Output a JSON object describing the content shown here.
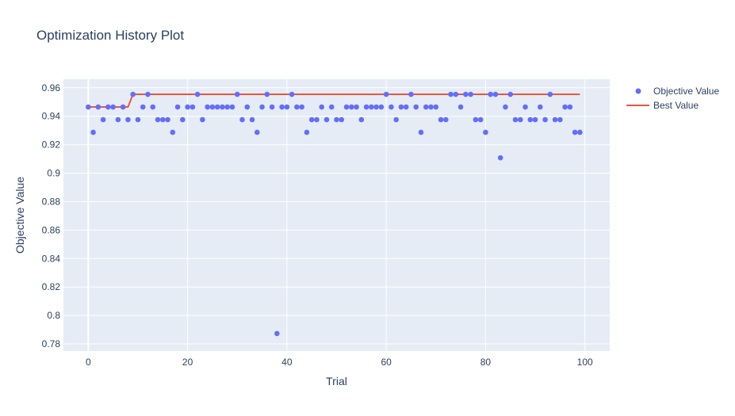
{
  "chart_data": {
    "type": "scatter",
    "title": "Optimization History Plot",
    "xlabel": "Trial",
    "ylabel": "Objective Value",
    "xlim": [
      -5,
      105
    ],
    "ylim": [
      0.775,
      0.966
    ],
    "xticks": [
      0,
      20,
      40,
      60,
      80,
      100
    ],
    "xtick_labels": [
      "0",
      "20",
      "40",
      "60",
      "80",
      "100"
    ],
    "yticks": [
      0.78,
      0.8,
      0.82,
      0.84,
      0.86,
      0.88,
      0.9,
      0.92,
      0.94,
      0.96
    ],
    "ytick_labels": [
      "0.78",
      "0.8",
      "0.82",
      "0.84",
      "0.86",
      "0.88",
      "0.9",
      "0.92",
      "0.94",
      "0.96"
    ],
    "grid": true,
    "legend_position": "top-right",
    "series": [
      {
        "name": "Objective Value",
        "kind": "markers",
        "color": "#636efa",
        "x": [
          0,
          1,
          2,
          3,
          4,
          5,
          6,
          7,
          8,
          9,
          10,
          11,
          12,
          13,
          14,
          15,
          16,
          17,
          18,
          19,
          20,
          21,
          22,
          23,
          24,
          25,
          26,
          27,
          28,
          29,
          30,
          31,
          32,
          33,
          34,
          35,
          36,
          37,
          38,
          39,
          40,
          41,
          42,
          43,
          44,
          45,
          46,
          47,
          48,
          49,
          50,
          51,
          52,
          53,
          54,
          55,
          56,
          57,
          58,
          59,
          60,
          61,
          62,
          63,
          64,
          65,
          66,
          67,
          68,
          69,
          70,
          71,
          72,
          73,
          74,
          75,
          76,
          77,
          78,
          79,
          80,
          81,
          82,
          83,
          84,
          85,
          86,
          87,
          88,
          89,
          90,
          91,
          92,
          93,
          94,
          95,
          96,
          97,
          98,
          99
        ],
        "y": [
          0.9465,
          0.9287,
          0.9465,
          0.9376,
          0.9465,
          0.9465,
          0.9376,
          0.9465,
          0.9376,
          0.9554,
          0.9376,
          0.9465,
          0.9554,
          0.9465,
          0.9376,
          0.9376,
          0.9376,
          0.9287,
          0.9465,
          0.9376,
          0.9465,
          0.9465,
          0.9554,
          0.9376,
          0.9465,
          0.9465,
          0.9465,
          0.9465,
          0.9465,
          0.9465,
          0.9554,
          0.9376,
          0.9465,
          0.9376,
          0.9287,
          0.9465,
          0.9554,
          0.9465,
          0.7873,
          0.9465,
          0.9465,
          0.9554,
          0.9465,
          0.9465,
          0.9287,
          0.9376,
          0.9376,
          0.9465,
          0.9376,
          0.9465,
          0.9376,
          0.9376,
          0.9465,
          0.9465,
          0.9465,
          0.9376,
          0.9465,
          0.9465,
          0.9465,
          0.9465,
          0.9554,
          0.9465,
          0.9376,
          0.9465,
          0.9465,
          0.9554,
          0.9465,
          0.9287,
          0.9465,
          0.9465,
          0.9465,
          0.9376,
          0.9376,
          0.9554,
          0.9554,
          0.9465,
          0.9554,
          0.9554,
          0.9376,
          0.9376,
          0.9287,
          0.9554,
          0.9554,
          0.9108,
          0.9465,
          0.9554,
          0.9376,
          0.9376,
          0.9465,
          0.9376,
          0.9376,
          0.9465,
          0.9376,
          0.9554,
          0.9376,
          0.9376,
          0.9465,
          0.9465,
          0.9287,
          0.9287
        ]
      },
      {
        "name": "Best Value",
        "kind": "line",
        "color": "#ef553b",
        "x": [
          0,
          8,
          9,
          99
        ],
        "y": [
          0.9465,
          0.9465,
          0.9554,
          0.9554
        ]
      }
    ]
  }
}
